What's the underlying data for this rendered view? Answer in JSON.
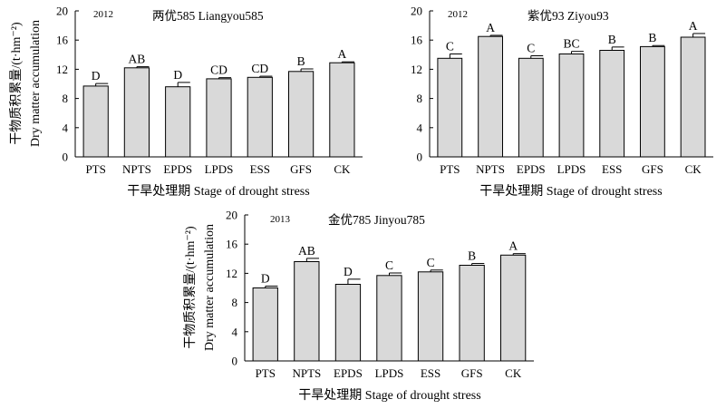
{
  "chart_data": [
    {
      "type": "bar",
      "year": "2012",
      "title": "两优585  Liangyou585",
      "categories": [
        "PTS",
        "NPTS",
        "EPDS",
        "LPDS",
        "ESS",
        "GFS",
        "CK"
      ],
      "values": [
        9.7,
        12.2,
        9.6,
        10.7,
        10.9,
        11.7,
        12.9
      ],
      "errors": [
        0.35,
        0.15,
        0.6,
        0.15,
        0.15,
        0.35,
        0.12
      ],
      "letters": [
        "D",
        "AB",
        "D",
        "CD",
        "CD",
        "B",
        "A"
      ],
      "xlabel": "干旱处理期 Stage of drought stress",
      "ylabel_line1": "干物质积累量/(t·hm⁻²)",
      "ylabel_line2": "Dry matter accumulation",
      "ylim": [
        0,
        20
      ],
      "yticks": [
        "0",
        "4",
        "8",
        "12",
        "16",
        "20"
      ],
      "bar_color": "#d9d9d9"
    },
    {
      "type": "bar",
      "year": "2012",
      "title": "紫优93  Ziyou93",
      "categories": [
        "PTS",
        "NPTS",
        "EPDS",
        "LPDS",
        "ESS",
        "GFS",
        "CK"
      ],
      "values": [
        13.5,
        16.5,
        13.5,
        14.1,
        14.6,
        15.1,
        16.4
      ],
      "errors": [
        0.6,
        0.15,
        0.35,
        0.35,
        0.45,
        0.15,
        0.5
      ],
      "letters": [
        "C",
        "A",
        "C",
        "BC",
        "B",
        "B",
        "A"
      ],
      "xlabel": "干旱处理期 Stage of drought stress",
      "ylim": [
        0,
        20
      ],
      "yticks": [
        "0",
        "4",
        "8",
        "12",
        "16",
        "20"
      ],
      "bar_color": "#d9d9d9"
    },
    {
      "type": "bar",
      "year": "2013",
      "title": "金优785  Jinyou785",
      "categories": [
        "PTS",
        "NPTS",
        "EPDS",
        "LPDS",
        "ESS",
        "GFS",
        "CK"
      ],
      "values": [
        10.0,
        13.6,
        10.5,
        11.7,
        12.2,
        13.1,
        14.5
      ],
      "errors": [
        0.25,
        0.45,
        0.7,
        0.35,
        0.25,
        0.25,
        0.2
      ],
      "letters": [
        "D",
        "AB",
        "D",
        "C",
        "C",
        "B",
        "A"
      ],
      "xlabel": "干旱处理期 Stage of drought stress",
      "ylabel_line1": "干物质积累量/(t·hm⁻²)",
      "ylabel_line2": "Dry matter accumulation",
      "ylim": [
        0,
        20
      ],
      "yticks": [
        "0",
        "4",
        "8",
        "12",
        "16",
        "20"
      ],
      "bar_color": "#d9d9d9"
    }
  ]
}
